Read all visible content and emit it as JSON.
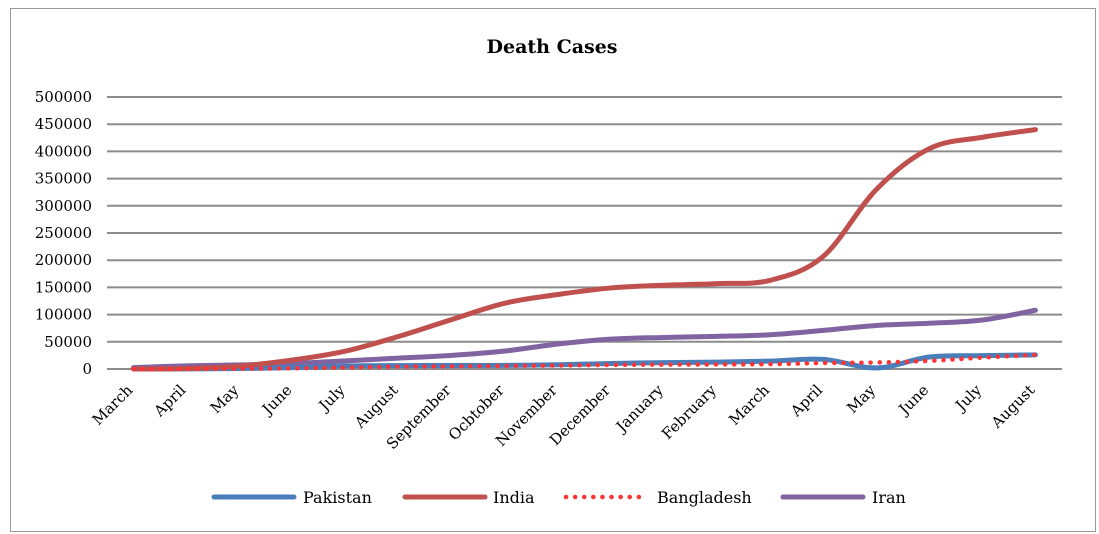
{
  "chart_data": {
    "type": "line",
    "title": "Death Cases",
    "xlabel": "",
    "ylabel": "",
    "ylim": [
      0,
      500000
    ],
    "yticks": [
      0,
      50000,
      100000,
      150000,
      200000,
      250000,
      300000,
      350000,
      400000,
      450000,
      500000
    ],
    "categories": [
      "March",
      "April",
      "May",
      "June",
      "July",
      "August",
      "September",
      "Ocbtober",
      "November",
      "December",
      "January",
      "February",
      "March",
      "April",
      "May",
      "June",
      "July",
      "August"
    ],
    "grid": true,
    "legend_position": "bottom",
    "series": [
      {
        "name": "Pakistan",
        "color": "#4a7ebb",
        "style": "solid",
        "values": [
          0,
          150,
          900,
          2500,
          5500,
          6200,
          6400,
          6700,
          7900,
          10200,
          11700,
          12700,
          14500,
          17800,
          2000,
          22000,
          24500,
          26000
        ]
      },
      {
        "name": "India",
        "color": "#c0504d",
        "style": "solid",
        "values": [
          0,
          1000,
          5500,
          16500,
          33000,
          60000,
          91000,
          121000,
          137000,
          149000,
          154000,
          157000,
          163000,
          207000,
          330000,
          405000,
          426000,
          440000
        ]
      },
      {
        "name": "Bangladesh",
        "color": "#ff3333",
        "style": "dotted",
        "values": [
          0,
          150,
          500,
          1300,
          2800,
          4300,
          5000,
          5600,
          6400,
          7500,
          8100,
          8400,
          8900,
          11000,
          12000,
          15000,
          21000,
          26000
        ]
      },
      {
        "name": "Iran",
        "color": "#8064a2",
        "style": "solid",
        "values": [
          2500,
          5800,
          7500,
          10000,
          15000,
          20000,
          25000,
          33000,
          46000,
          55000,
          58000,
          60000,
          63000,
          71000,
          80000,
          84000,
          90000,
          108000
        ]
      }
    ]
  }
}
